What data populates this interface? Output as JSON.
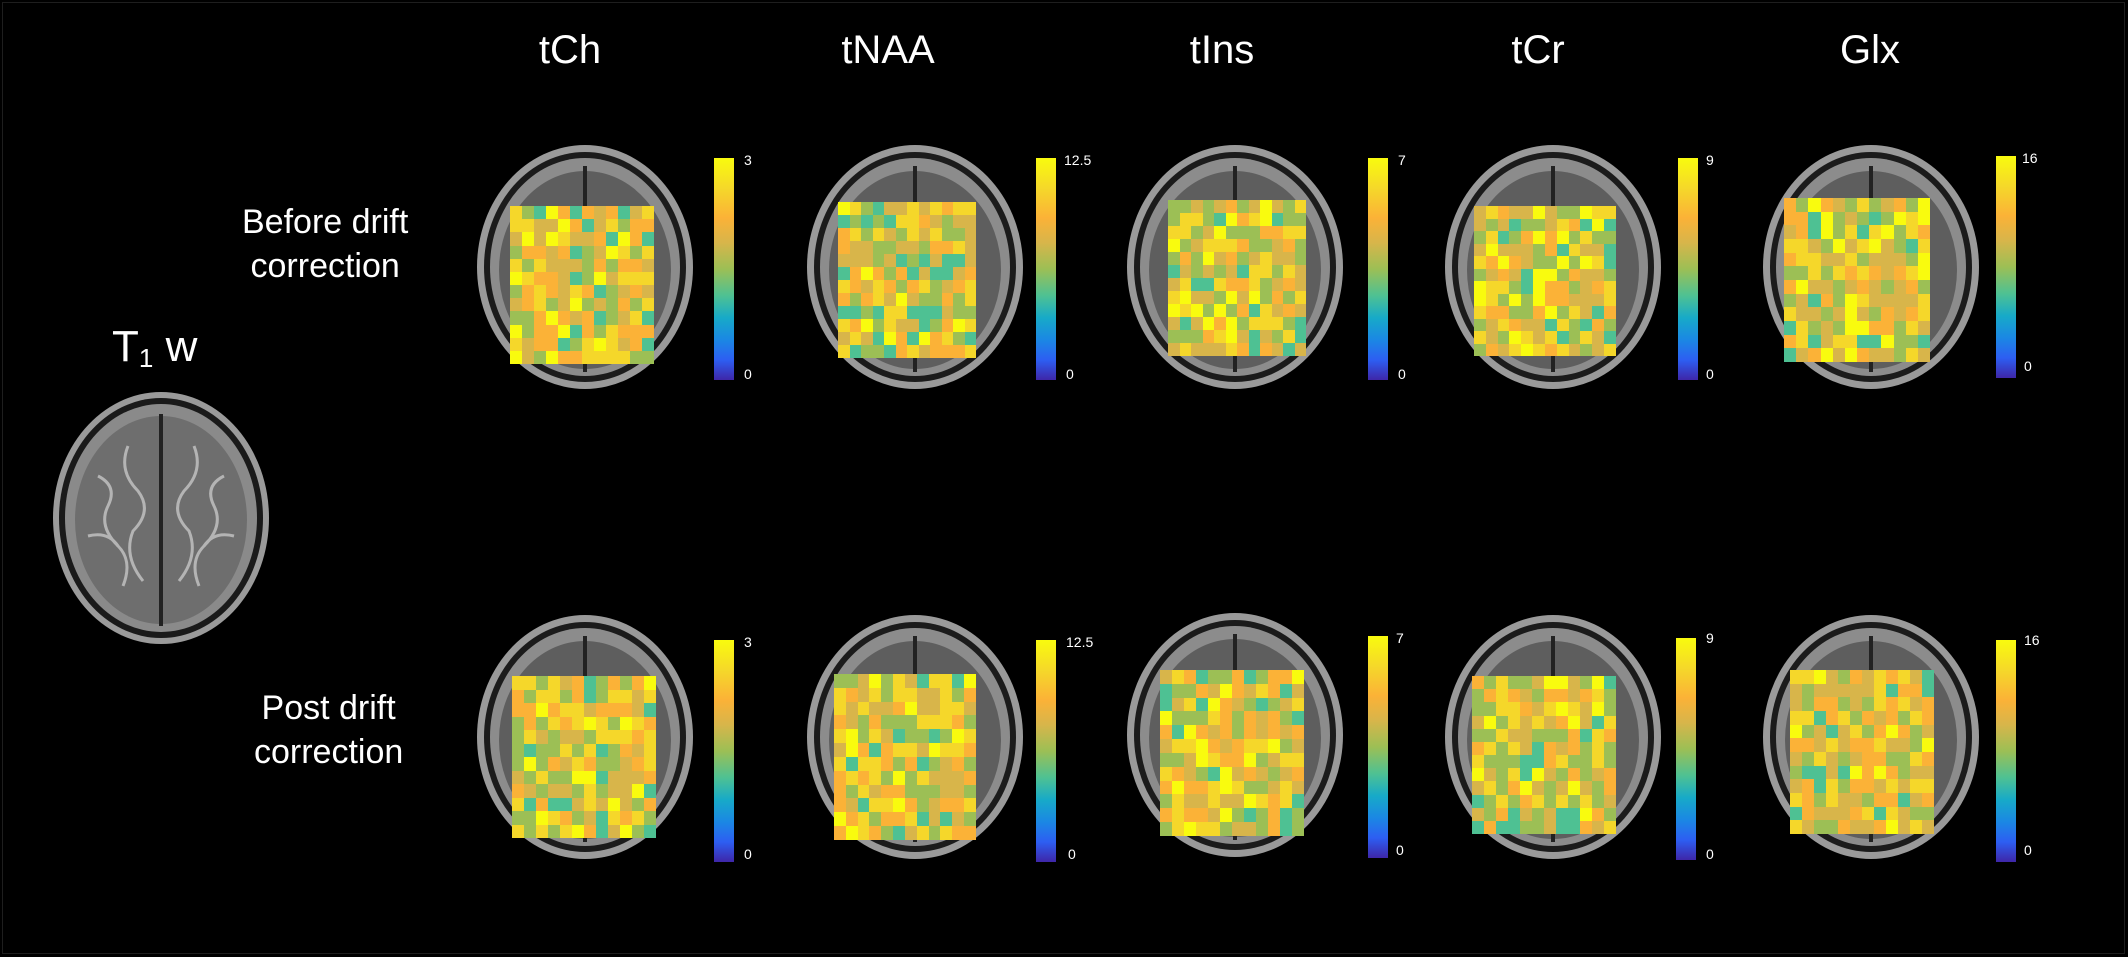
{
  "columns": [
    {
      "name": "tCh",
      "cb_max": "3",
      "cb_min": "0"
    },
    {
      "name": "tNAA",
      "cb_max": "12.5",
      "cb_min": "0"
    },
    {
      "name": "tIns",
      "cb_max": "7",
      "cb_min": "0"
    },
    {
      "name": "tCr",
      "cb_max": "9",
      "cb_min": "0"
    },
    {
      "name": "Glx",
      "cb_max": "16",
      "cb_min": "0"
    }
  ],
  "rows": [
    {
      "label_line1": "Before drift",
      "label_line2": "correction"
    },
    {
      "label_line1": "Post drift",
      "label_line2": "correction"
    }
  ],
  "t1": {
    "letter": "T",
    "subscript": "1",
    "suffix": "w"
  },
  "colors": {
    "background": "#000000",
    "text": "#ffffff",
    "colormap": [
      "#3e26a8",
      "#2d5ef2",
      "#1b87e4",
      "#17aac8",
      "#4ec193",
      "#9cbf55",
      "#d8b54a",
      "#fbb237",
      "#f5d72a",
      "#f9fb0e"
    ]
  }
}
